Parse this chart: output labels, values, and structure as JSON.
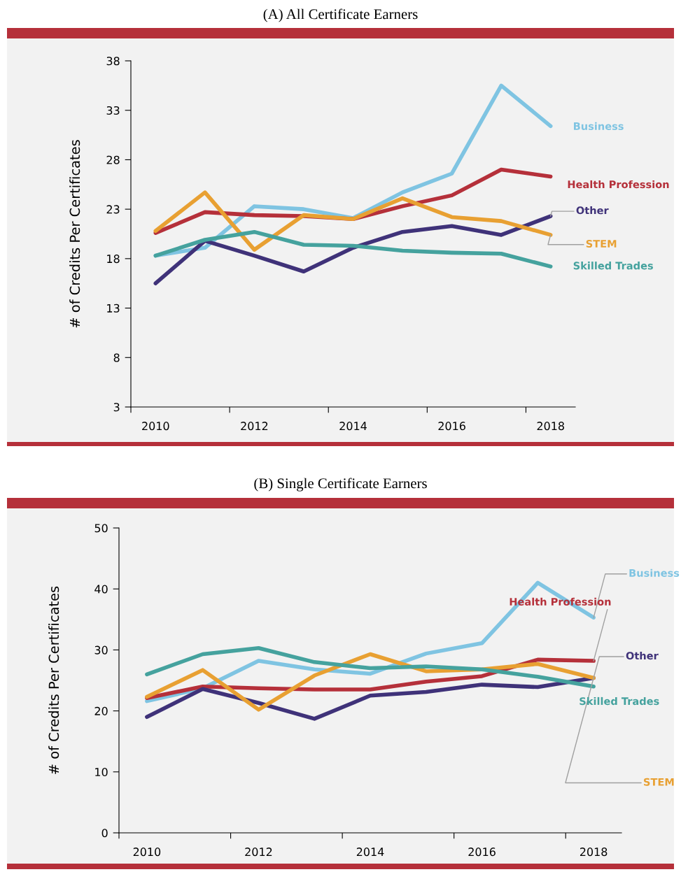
{
  "chart_data": [
    {
      "type": "line",
      "title": "(A) All Certificate Earners",
      "ylabel": "# of Credits Per Certificates",
      "x": [
        2010,
        2011,
        2012,
        2013,
        2014,
        2015,
        2016,
        2017,
        2018
      ],
      "xlim": [
        2009.5,
        2018.5
      ],
      "xticks": [
        {
          "value": 2009.5,
          "label": null
        },
        {
          "value": 2010,
          "label": "2010"
        },
        {
          "value": 2011.5,
          "label": null
        },
        {
          "value": 2012,
          "label": "2012"
        },
        {
          "value": 2013.5,
          "label": null
        },
        {
          "value": 2014,
          "label": "2014"
        },
        {
          "value": 2015.5,
          "label": null
        },
        {
          "value": 2016,
          "label": "2016"
        },
        {
          "value": 2017.5,
          "label": null
        },
        {
          "value": 2018,
          "label": "2018"
        }
      ],
      "ylim": [
        3,
        38
      ],
      "yticks": [
        3,
        8,
        13,
        18,
        23,
        28,
        33,
        38
      ],
      "grid": false,
      "legend": false,
      "marker": "none",
      "line_style": "solid",
      "series": [
        {
          "name": "Business",
          "color": "#7fc4e2",
          "values": [
            18.3,
            19.1,
            23.3,
            23.0,
            22.1,
            24.7,
            26.6,
            35.5,
            31.4
          ]
        },
        {
          "name": "Health Profession",
          "color": "#b5303a",
          "values": [
            20.6,
            22.7,
            22.4,
            22.3,
            22.0,
            23.3,
            24.4,
            27.0,
            26.3
          ]
        },
        {
          "name": "Other",
          "color": "#3f3279",
          "values": [
            15.5,
            19.8,
            18.3,
            16.7,
            19.1,
            20.7,
            21.3,
            20.4,
            22.3
          ]
        },
        {
          "name": "STEM",
          "color": "#e8a032",
          "values": [
            20.8,
            24.7,
            18.9,
            22.4,
            22.0,
            24.1,
            22.2,
            21.8,
            20.4
          ]
        },
        {
          "name": "Skilled Trades",
          "color": "#45a29e",
          "values": [
            18.3,
            19.9,
            20.7,
            19.4,
            19.3,
            18.8,
            18.6,
            18.5,
            17.2
          ]
        }
      ]
    },
    {
      "type": "line",
      "title": "(B) Single Certificate Earners",
      "ylabel": "# of Credits Per Certificates",
      "x": [
        2010,
        2011,
        2012,
        2013,
        2014,
        2015,
        2016,
        2017,
        2018
      ],
      "xlim": [
        2009.5,
        2018.5
      ],
      "xticks": [
        {
          "value": 2009.5,
          "label": null
        },
        {
          "value": 2010,
          "label": "2010"
        },
        {
          "value": 2011.5,
          "label": null
        },
        {
          "value": 2012,
          "label": "2012"
        },
        {
          "value": 2013.5,
          "label": null
        },
        {
          "value": 2014,
          "label": "2014"
        },
        {
          "value": 2015.5,
          "label": null
        },
        {
          "value": 2016,
          "label": "2016"
        },
        {
          "value": 2017.5,
          "label": null
        },
        {
          "value": 2018,
          "label": "2018"
        }
      ],
      "ylim": [
        0,
        50
      ],
      "yticks": [
        0,
        10,
        20,
        30,
        40,
        50
      ],
      "grid": false,
      "legend": false,
      "marker": "none",
      "line_style": "solid",
      "series": [
        {
          "name": "Business",
          "color": "#7fc4e2",
          "values": [
            21.6,
            23.7,
            28.2,
            26.8,
            26.1,
            29.4,
            31.1,
            41.0,
            35.3
          ]
        },
        {
          "name": "Health Profession",
          "color": "#b5303a",
          "values": [
            22.1,
            24.0,
            23.7,
            23.5,
            23.5,
            24.8,
            25.7,
            28.4,
            28.2
          ]
        },
        {
          "name": "Other",
          "color": "#3f3279",
          "values": [
            19.0,
            23.6,
            21.3,
            18.7,
            22.5,
            23.1,
            24.3,
            23.9,
            25.4
          ]
        },
        {
          "name": "STEM",
          "color": "#e8a032",
          "values": [
            22.3,
            26.7,
            20.2,
            25.8,
            29.3,
            26.5,
            26.8,
            27.7,
            25.4
          ]
        },
        {
          "name": "Skilled Trades",
          "color": "#45a29e",
          "values": [
            26.0,
            29.3,
            30.3,
            28.0,
            27.0,
            27.3,
            26.8,
            25.6,
            24.0
          ]
        }
      ]
    }
  ]
}
